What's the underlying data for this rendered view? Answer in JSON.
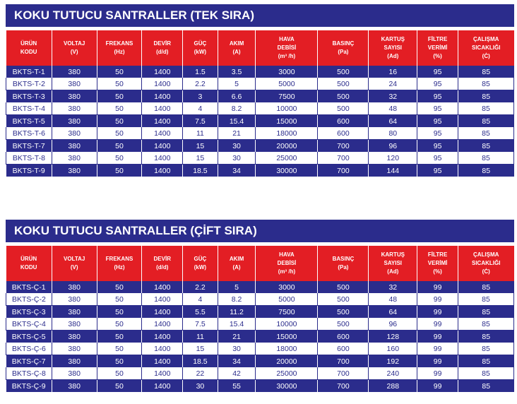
{
  "headers": [
    [
      "ÜRÜN",
      "KODU"
    ],
    [
      "VOLTAJ",
      "(V)"
    ],
    [
      "FREKANS",
      "(Hz)"
    ],
    [
      "DEVİR",
      "(d/d)"
    ],
    [
      "GÜÇ",
      "(kW)"
    ],
    [
      "AKIM",
      "(A)"
    ],
    [
      "HAVA",
      "DEBİSİ",
      "(m³ /h)"
    ],
    [
      "BASINÇ",
      "(Pa)"
    ],
    [
      "KARTUŞ",
      "SAYISI",
      "(Ad)"
    ],
    [
      "FİLTRE",
      "VERİMİ",
      "(%)"
    ],
    [
      "ÇALIŞMA",
      "SICAKLIĞI",
      "(Ċ)"
    ]
  ],
  "tables": [
    {
      "title": "KOKU TUTUCU SANTRALLER (TEK SIRA)",
      "rows": [
        [
          "BKTS-T-1",
          "380",
          "50",
          "1400",
          "1.5",
          "3.5",
          "3000",
          "500",
          "16",
          "95",
          "85"
        ],
        [
          "BKTS-T-2",
          "380",
          "50",
          "1400",
          "2.2",
          "5",
          "5000",
          "500",
          "24",
          "95",
          "85"
        ],
        [
          "BKTS-T-3",
          "380",
          "50",
          "1400",
          "3",
          "6.6",
          "7500",
          "500",
          "32",
          "95",
          "85"
        ],
        [
          "BKTS-T-4",
          "380",
          "50",
          "1400",
          "4",
          "8.2",
          "10000",
          "500",
          "48",
          "95",
          "85"
        ],
        [
          "BKTS-T-5",
          "380",
          "50",
          "1400",
          "7.5",
          "15.4",
          "15000",
          "600",
          "64",
          "95",
          "85"
        ],
        [
          "BKTS-T-6",
          "380",
          "50",
          "1400",
          "11",
          "21",
          "18000",
          "600",
          "80",
          "95",
          "85"
        ],
        [
          "BKTS-T-7",
          "380",
          "50",
          "1400",
          "15",
          "30",
          "20000",
          "700",
          "96",
          "95",
          "85"
        ],
        [
          "BKTS-T-8",
          "380",
          "50",
          "1400",
          "15",
          "30",
          "25000",
          "700",
          "120",
          "95",
          "85"
        ],
        [
          "BKTS-T-9",
          "380",
          "50",
          "1400",
          "18.5",
          "34",
          "30000",
          "700",
          "144",
          "95",
          "85"
        ]
      ]
    },
    {
      "title": "KOKU TUTUCU SANTRALLER (ÇİFT SIRA)",
      "rows": [
        [
          "BKTS-Ç-1",
          "380",
          "50",
          "1400",
          "2.2",
          "5",
          "3000",
          "500",
          "32",
          "99",
          "85"
        ],
        [
          "BKTS-Ç-2",
          "380",
          "50",
          "1400",
          "4",
          "8.2",
          "5000",
          "500",
          "48",
          "99",
          "85"
        ],
        [
          "BKTS-Ç-3",
          "380",
          "50",
          "1400",
          "5.5",
          "11.2",
          "7500",
          "500",
          "64",
          "99",
          "85"
        ],
        [
          "BKTS-Ç-4",
          "380",
          "50",
          "1400",
          "7.5",
          "15.4",
          "10000",
          "500",
          "96",
          "99",
          "85"
        ],
        [
          "BKTS-Ç-5",
          "380",
          "50",
          "1400",
          "11",
          "21",
          "15000",
          "600",
          "128",
          "99",
          "85"
        ],
        [
          "BKTS-Ç-6",
          "380",
          "50",
          "1400",
          "15",
          "30",
          "18000",
          "600",
          "160",
          "99",
          "85"
        ],
        [
          "BKTS-Ç-7",
          "380",
          "50",
          "1400",
          "18.5",
          "34",
          "20000",
          "700",
          "192",
          "99",
          "85"
        ],
        [
          "BKTS-Ç-8",
          "380",
          "50",
          "1400",
          "22",
          "42",
          "25000",
          "700",
          "240",
          "99",
          "85"
        ],
        [
          "BKTS-Ç-9",
          "380",
          "50",
          "1400",
          "30",
          "55",
          "30000",
          "700",
          "288",
          "99",
          "85"
        ]
      ]
    }
  ]
}
